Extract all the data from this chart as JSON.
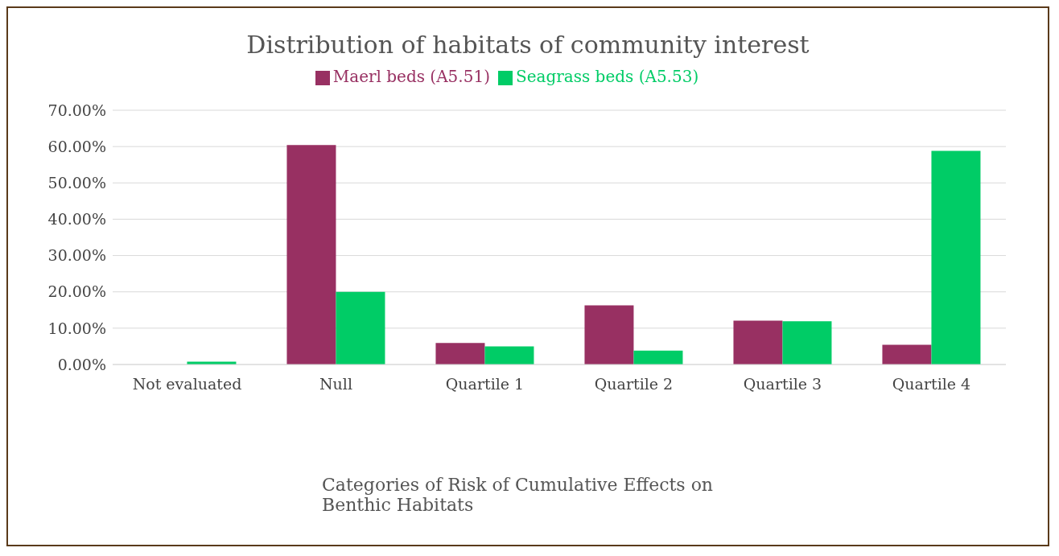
{
  "chart_data": {
    "type": "bar",
    "title": "Distribution of habitats of community interest",
    "xlabel": "Categories of Risk of Cumulative Effects on Benthic Habitats",
    "categories": [
      "Not evaluated",
      "Null",
      "Quartile 1",
      "Quartile 2",
      "Quartile 3",
      "Quartile 4"
    ],
    "series": [
      {
        "name": "Maerl beds (A5.51)",
        "color": "#983062",
        "values": [
          0,
          60.4,
          5.9,
          16.3,
          12.1,
          5.4
        ]
      },
      {
        "name": "Seagrass beds (A5.53)",
        "color": "#00cc66",
        "values": [
          0.8,
          20,
          5,
          3.8,
          11.9,
          58.8
        ]
      }
    ],
    "ylim": [
      0,
      70
    ],
    "yticks": [
      {
        "value": 0,
        "label": "0.00%"
      },
      {
        "value": 10,
        "label": "10.00%"
      },
      {
        "value": 20,
        "label": "20.00%"
      },
      {
        "value": 30,
        "label": "30.00%"
      },
      {
        "value": 40,
        "label": "40.00%"
      },
      {
        "value": 50,
        "label": "50.00%"
      },
      {
        "value": 60,
        "label": "60.00%"
      },
      {
        "value": 70,
        "label": "70.00%"
      }
    ],
    "grid": "y",
    "legend": "top"
  }
}
